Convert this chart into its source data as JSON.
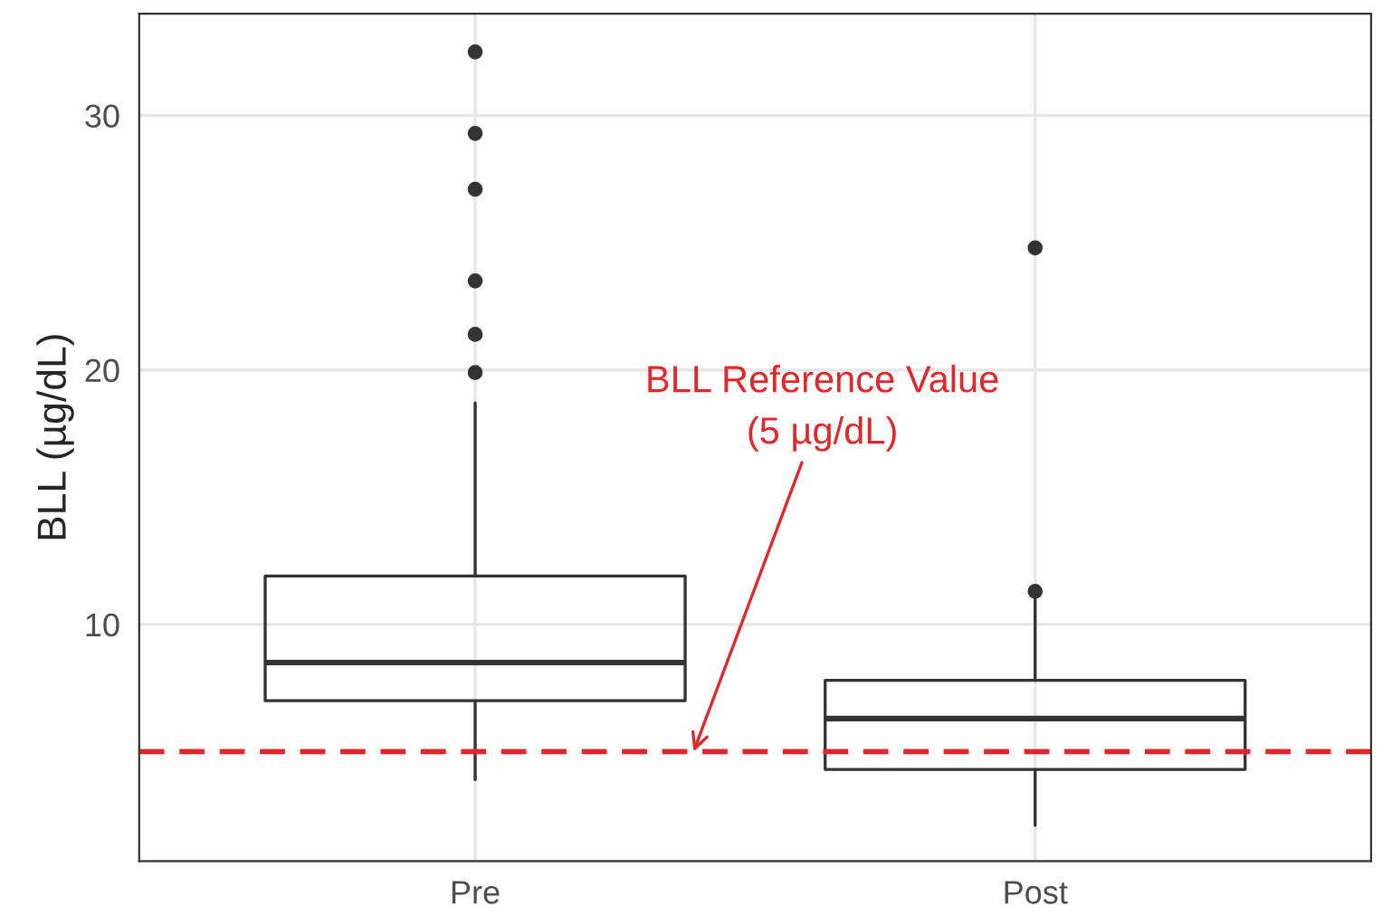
{
  "chart_data": {
    "type": "box",
    "ylabel": "BLL (µg/dL)",
    "categories": [
      "Pre",
      "Post"
    ],
    "boxes": [
      {
        "low": 3.9,
        "q1": 7.0,
        "median": 8.5,
        "q3": 11.9,
        "high": 18.7,
        "outliers": [
          19.9,
          21.4,
          23.5,
          27.1,
          29.3,
          32.5
        ]
      },
      {
        "low": 2.1,
        "q1": 4.3,
        "median": 6.3,
        "q3": 7.8,
        "high": 11.0,
        "outliers": [
          11.3,
          24.8
        ]
      }
    ],
    "ylim": [
      0.7,
      34
    ],
    "yticks": [
      10,
      20,
      30
    ],
    "grid": true,
    "ref_lines": [
      {
        "axis": "y",
        "value": 5,
        "label": "BLL Reference Value\n(5 µg/dL)",
        "color": "#e3262a",
        "line_style": "dashed"
      }
    ]
  }
}
